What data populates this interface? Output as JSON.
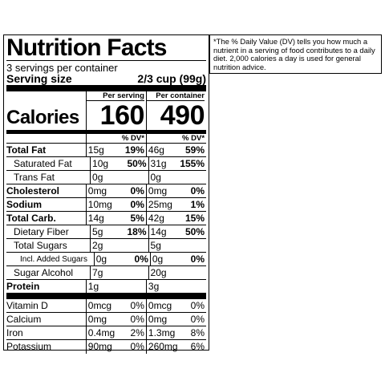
{
  "title": "Nutrition Facts",
  "servings": "3 servings per container",
  "serving_size": {
    "label": "Serving size",
    "value": "2/3 cup (99g)"
  },
  "calories": {
    "label": "Calories",
    "per_serving_header": "Per serving",
    "per_container_header": "Per container",
    "per_serving": "160",
    "per_container": "490"
  },
  "dv_header": "% DV*",
  "nutrients": [
    {
      "name": "Total Fat",
      "bold": true,
      "indent": 0,
      "s_amt": "15g",
      "s_dv": "19%",
      "c_amt": "46g",
      "c_dv": "59%"
    },
    {
      "name": "Saturated Fat",
      "bold": false,
      "indent": 1,
      "s_amt": "10g",
      "s_dv": "50%",
      "c_amt": "31g",
      "c_dv": "155%"
    },
    {
      "name": "Trans Fat",
      "bold": false,
      "indent": 1,
      "s_amt": "0g",
      "s_dv": "",
      "c_amt": "0g",
      "c_dv": ""
    },
    {
      "name": "Cholesterol",
      "bold": true,
      "indent": 0,
      "s_amt": "0mg",
      "s_dv": "0%",
      "c_amt": "0mg",
      "c_dv": "0%"
    },
    {
      "name": "Sodium",
      "bold": true,
      "indent": 0,
      "s_amt": "10mg",
      "s_dv": "0%",
      "c_amt": "25mg",
      "c_dv": "1%"
    },
    {
      "name": "Total Carb.",
      "bold": true,
      "indent": 0,
      "s_amt": "14g",
      "s_dv": "5%",
      "c_amt": "42g",
      "c_dv": "15%"
    },
    {
      "name": "Dietary Fiber",
      "bold": false,
      "indent": 1,
      "s_amt": "5g",
      "s_dv": "18%",
      "c_amt": "14g",
      "c_dv": "50%"
    },
    {
      "name": "Total Sugars",
      "bold": false,
      "indent": 1,
      "s_amt": "2g",
      "s_dv": "",
      "c_amt": "5g",
      "c_dv": ""
    },
    {
      "name": "Incl. Added Sugars",
      "bold": false,
      "indent": 2,
      "s_amt": "0g",
      "s_dv": "0%",
      "c_amt": "0g",
      "c_dv": "0%"
    },
    {
      "name": "Sugar Alcohol",
      "bold": false,
      "indent": 1,
      "s_amt": "7g",
      "s_dv": "",
      "c_amt": "20g",
      "c_dv": ""
    },
    {
      "name": "Protein",
      "bold": true,
      "indent": 0,
      "s_amt": "1g",
      "s_dv": "",
      "c_amt": "3g",
      "c_dv": ""
    }
  ],
  "vitamins": [
    {
      "name": "Vitamin D",
      "s_amt": "0mcg",
      "s_dv": "0%",
      "c_amt": "0mcg",
      "c_dv": "0%"
    },
    {
      "name": "Calcium",
      "s_amt": "0mg",
      "s_dv": "0%",
      "c_amt": "0mg",
      "c_dv": "0%"
    },
    {
      "name": "Iron",
      "s_amt": "0.4mg",
      "s_dv": "2%",
      "c_amt": "1.3mg",
      "c_dv": "8%"
    },
    {
      "name": "Potassium",
      "s_amt": "90mg",
      "s_dv": "0%",
      "c_amt": "260mg",
      "c_dv": "6%"
    }
  ],
  "footnote": "*The % Daily Value (DV) tells you how much a nutrient in a serving of food contributes to a daily diet. 2,000 calories a day is used for general nutrition advice."
}
